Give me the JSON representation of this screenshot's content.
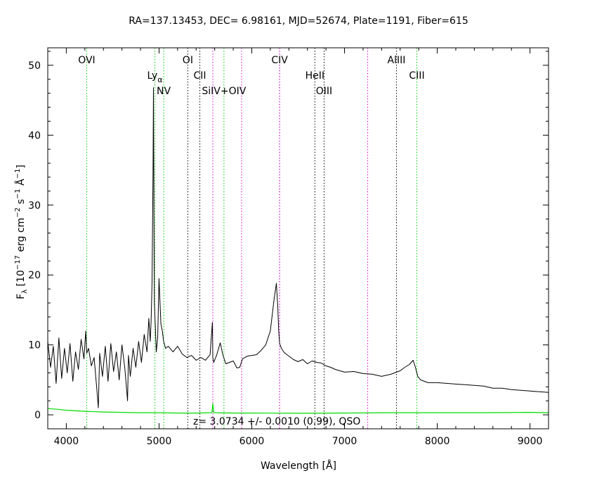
{
  "title": "RA=137.13453, DEC= 6.98161, MJD=52674, Plate=1191, Fiber=615",
  "redshift_text": "z= 3.0734 +/- 0.0010 (0.99), QSO",
  "colors": {
    "spectrum": "#000000",
    "error": "#00dd00",
    "line_green": "#00cc00",
    "line_black": "#000000",
    "line_magenta": "#dd00dd"
  },
  "chart_data": {
    "type": "line",
    "title": "RA=137.13453, DEC= 6.98161, MJD=52674, Plate=1191, Fiber=615",
    "xlabel": "Wavelength [Å]",
    "ylabel": "Fλ [10⁻¹⁷ erg cm⁻² s⁻¹ Å⁻¹]",
    "xlim": [
      3800,
      9200
    ],
    "ylim": [
      -2,
      52.5
    ],
    "x_ticks": [
      4000,
      5000,
      6000,
      7000,
      8000,
      9000
    ],
    "y_ticks": [
      0,
      10,
      20,
      30,
      40,
      50
    ],
    "grid": false,
    "series": [
      {
        "key": "flux",
        "x": [
          3800,
          3830,
          3860,
          3890,
          3920,
          3950,
          3980,
          4010,
          4040,
          4070,
          4100,
          4130,
          4160,
          4190,
          4210,
          4220,
          4240,
          4270,
          4300,
          4330,
          4345,
          4360,
          4390,
          4420,
          4450,
          4480,
          4510,
          4540,
          4570,
          4600,
          4630,
          4660,
          4670,
          4690,
          4720,
          4750,
          4780,
          4810,
          4840,
          4870,
          4890,
          4905,
          4915,
          4925,
          4935,
          4940,
          4945,
          4950,
          4960,
          4970,
          4985,
          5000,
          5020,
          5035,
          5050,
          5070,
          5100,
          5150,
          5200,
          5250,
          5300,
          5350,
          5400,
          5450,
          5500,
          5550,
          5575,
          5580,
          5590,
          5620,
          5660,
          5690,
          5720,
          5760,
          5800,
          5840,
          5870,
          5900,
          5950,
          6000,
          6050,
          6100,
          6150,
          6200,
          6240,
          6265,
          6280,
          6290,
          6300,
          6320,
          6350,
          6400,
          6450,
          6500,
          6550,
          6600,
          6650,
          6700,
          6750,
          6800,
          6850,
          6900,
          6950,
          7000,
          7100,
          7200,
          7300,
          7400,
          7500,
          7600,
          7650,
          7700,
          7740,
          7760,
          7790,
          7820,
          7860,
          7900,
          8000,
          8100,
          8200,
          8300,
          8400,
          8500,
          8600,
          8700,
          8800,
          8900,
          9000,
          9100,
          9200
        ],
        "y": [
          10.5,
          6.8,
          9.8,
          4.5,
          11.0,
          5.2,
          9.5,
          6.0,
          10.2,
          4.8,
          9.0,
          6.5,
          10.8,
          8.0,
          12.0,
          8.8,
          9.5,
          7.0,
          8.2,
          3.5,
          1.0,
          8.8,
          5.5,
          9.8,
          4.8,
          10.2,
          6.2,
          9.0,
          5.0,
          10.0,
          6.8,
          2.0,
          8.5,
          5.5,
          9.5,
          6.8,
          10.5,
          7.5,
          11.5,
          9.0,
          13.8,
          10.5,
          13.5,
          19.0,
          35.0,
          46.8,
          28.0,
          16.0,
          12.5,
          9.0,
          11.0,
          19.5,
          13.0,
          12.0,
          10.5,
          9.5,
          9.8,
          9.0,
          9.8,
          8.7,
          8.2,
          8.5,
          7.8,
          8.2,
          7.8,
          8.6,
          13.2,
          8.2,
          7.5,
          8.5,
          10.3,
          8.5,
          7.3,
          7.5,
          7.7,
          6.7,
          6.8,
          8.0,
          8.4,
          8.5,
          8.6,
          9.2,
          10.0,
          12.0,
          16.5,
          18.8,
          15.5,
          12.0,
          10.2,
          9.5,
          8.9,
          8.4,
          7.9,
          7.6,
          7.9,
          7.3,
          7.7,
          7.5,
          7.4,
          7.0,
          6.8,
          6.5,
          6.3,
          6.1,
          6.2,
          5.9,
          5.8,
          5.5,
          5.8,
          6.3,
          6.8,
          7.2,
          7.8,
          7.0,
          5.5,
          5.0,
          4.8,
          4.6,
          4.6,
          4.5,
          4.4,
          4.3,
          4.2,
          4.1,
          3.8,
          3.8,
          3.6,
          3.5,
          3.4,
          3.3,
          3.2
        ]
      },
      {
        "key": "error",
        "x": [
          3800,
          3900,
          4000,
          4200,
          4400,
          4600,
          4800,
          5000,
          5200,
          5400,
          5570,
          5580,
          5590,
          5800,
          6000,
          6500,
          7000,
          7500,
          8000,
          8500,
          9000,
          9200
        ],
        "y": [
          0.9,
          0.8,
          0.65,
          0.5,
          0.4,
          0.35,
          0.3,
          0.3,
          0.25,
          0.25,
          0.3,
          1.6,
          0.3,
          0.25,
          0.25,
          0.22,
          0.25,
          0.3,
          0.3,
          0.3,
          0.35,
          0.3
        ]
      }
    ],
    "emission_lines": [
      {
        "label": "OVI",
        "x": 4220,
        "color": "green",
        "row": 1
      },
      {
        "label": "Ly",
        "subscript": "α",
        "x": 4955,
        "color": "green",
        "row": 2
      },
      {
        "label": "NV",
        "x": 5050,
        "color": "green",
        "row": 3
      },
      {
        "label": "OI",
        "x": 5310,
        "color": "black",
        "row": 1
      },
      {
        "label": "CII",
        "x": 5440,
        "color": "black",
        "row": 2
      },
      {
        "label": "",
        "x": 5580,
        "color": "magenta",
        "row": 0
      },
      {
        "label": "SiIV+OIV",
        "x": 5700,
        "color": "green",
        "row": 3
      },
      {
        "label": "",
        "x": 5890,
        "color": "magenta",
        "row": 0
      },
      {
        "label": "CIV",
        "x": 6300,
        "color": "black",
        "row": 1
      },
      {
        "label": "",
        "x": 6300,
        "color": "magenta",
        "row": 0
      },
      {
        "label": "HeII",
        "x": 6680,
        "color": "black",
        "row": 2
      },
      {
        "label": "OIII",
        "x": 6780,
        "color": "black",
        "row": 3
      },
      {
        "label": "",
        "x": 7250,
        "color": "magenta",
        "row": 0
      },
      {
        "label": "AlIII",
        "x": 7560,
        "color": "black",
        "row": 1
      },
      {
        "label": "CIII",
        "x": 7780,
        "color": "green",
        "row": 2
      }
    ]
  }
}
